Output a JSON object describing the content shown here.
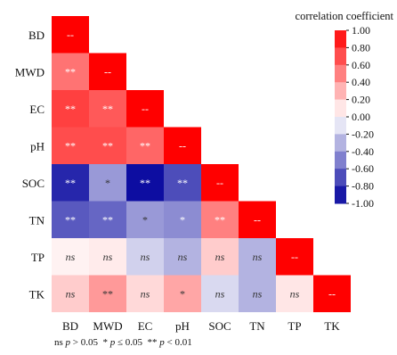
{
  "chart_data": {
    "type": "heatmap",
    "variables": [
      "BD",
      "MWD",
      "EC",
      "pH",
      "SOC",
      "TN",
      "TP",
      "TK"
    ],
    "layout": "lower-triangle",
    "cells": [
      [
        {
          "value": 1.0,
          "label": "--"
        }
      ],
      [
        {
          "value": 0.55,
          "label": "**"
        },
        {
          "value": 1.0,
          "label": "--"
        }
      ],
      [
        {
          "value": 0.75,
          "label": "**"
        },
        {
          "value": 0.65,
          "label": "**"
        },
        {
          "value": 1.0,
          "label": "--"
        }
      ],
      [
        {
          "value": 0.7,
          "label": "**"
        },
        {
          "value": 0.7,
          "label": "**"
        },
        {
          "value": 0.6,
          "label": "**"
        },
        {
          "value": 1.0,
          "label": "--"
        }
      ],
      [
        {
          "value": -0.85,
          "label": "**"
        },
        {
          "value": -0.4,
          "label": "*"
        },
        {
          "value": -0.95,
          "label": "**"
        },
        {
          "value": -0.7,
          "label": "**"
        },
        {
          "value": 1.0,
          "label": "--"
        }
      ],
      [
        {
          "value": -0.65,
          "label": "**"
        },
        {
          "value": -0.6,
          "label": "**"
        },
        {
          "value": -0.4,
          "label": "*"
        },
        {
          "value": -0.45,
          "label": "*"
        },
        {
          "value": 0.5,
          "label": "**"
        },
        {
          "value": 1.0,
          "label": "--"
        }
      ],
      [
        {
          "value": 0.05,
          "label": "ns"
        },
        {
          "value": 0.08,
          "label": "ns"
        },
        {
          "value": -0.18,
          "label": "ns"
        },
        {
          "value": -0.3,
          "label": "ns"
        },
        {
          "value": 0.2,
          "label": "ns"
        },
        {
          "value": -0.3,
          "label": "ns"
        },
        {
          "value": 1.0,
          "label": "--"
        }
      ],
      [
        {
          "value": 0.2,
          "label": "ns"
        },
        {
          "value": 0.4,
          "label": "**"
        },
        {
          "value": 0.15,
          "label": "ns"
        },
        {
          "value": 0.35,
          "label": "*"
        },
        {
          "value": -0.15,
          "label": "ns"
        },
        {
          "value": -0.3,
          "label": "ns"
        },
        {
          "value": 0.1,
          "label": "ns"
        },
        {
          "value": 1.0,
          "label": "--"
        }
      ]
    ],
    "colorbar": {
      "title": "correlation coefficient",
      "range": [
        -1.0,
        1.0
      ],
      "ticks": [
        "1.00",
        "0.80",
        "0.60",
        "0.40",
        "0.20",
        "0.00",
        "-0.20",
        "-0.40",
        "-0.60",
        "-0.80",
        "-1.00"
      ],
      "colors": {
        "positive": "#ff0000",
        "zero": "#ffffff",
        "negative": "#00009c"
      }
    },
    "footnote": {
      "ns": "ns",
      "ns_cond": " > 0.05",
      "one_star": "*",
      "one_star_cond": " ≤ 0.05",
      "two_star": "**",
      "two_star_cond": " < 0.01",
      "p": "p"
    }
  }
}
